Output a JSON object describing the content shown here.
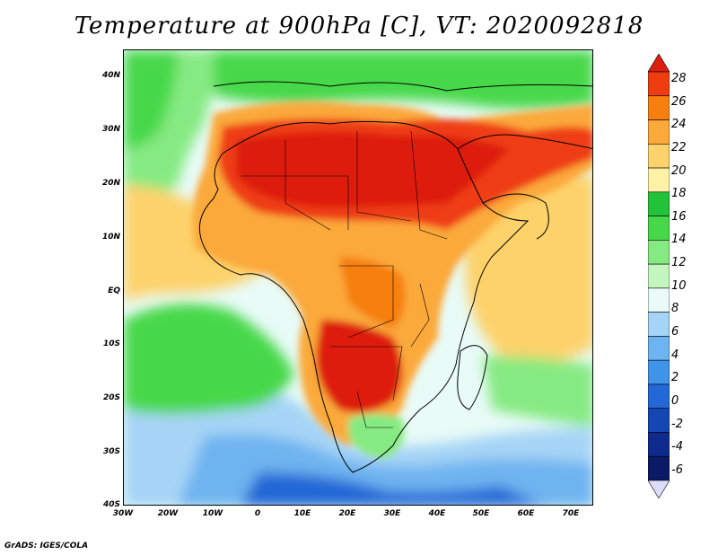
{
  "title": "Temperature at 900hPa [C], VT: 2020092818",
  "credit": "GrADS: IGES/COLA",
  "map": {
    "region": "Africa",
    "lat_range": [
      -40,
      45
    ],
    "lon_range": [
      -30,
      75
    ],
    "lat_ticks": [
      "40N",
      "30N",
      "20N",
      "10N",
      "EQ",
      "10S",
      "20S",
      "30S",
      "40S"
    ],
    "lon_ticks": [
      "30W",
      "20W",
      "10W",
      "0",
      "10E",
      "20E",
      "30E",
      "40E",
      "50E",
      "60E",
      "70E"
    ]
  },
  "colorbar": {
    "labels": [
      "28",
      "26",
      "24",
      "22",
      "20",
      "18",
      "16",
      "14",
      "12",
      "10",
      "8",
      "6",
      "4",
      "2",
      "0",
      "-2",
      "-4",
      "-6"
    ],
    "colors": [
      "#dd1e10",
      "#ef3d12",
      "#f77f10",
      "#fba93a",
      "#fdd26a",
      "#fef2a6",
      "#22c23a",
      "#47d84a",
      "#86ea82",
      "#c4f7c0",
      "#e8fbf7",
      "#a6d4f6",
      "#6eb4f0",
      "#3f93e8",
      "#2268d6",
      "#1446b4",
      "#0d2a8c",
      "#0a1a66",
      "#dcdcf8"
    ]
  }
}
